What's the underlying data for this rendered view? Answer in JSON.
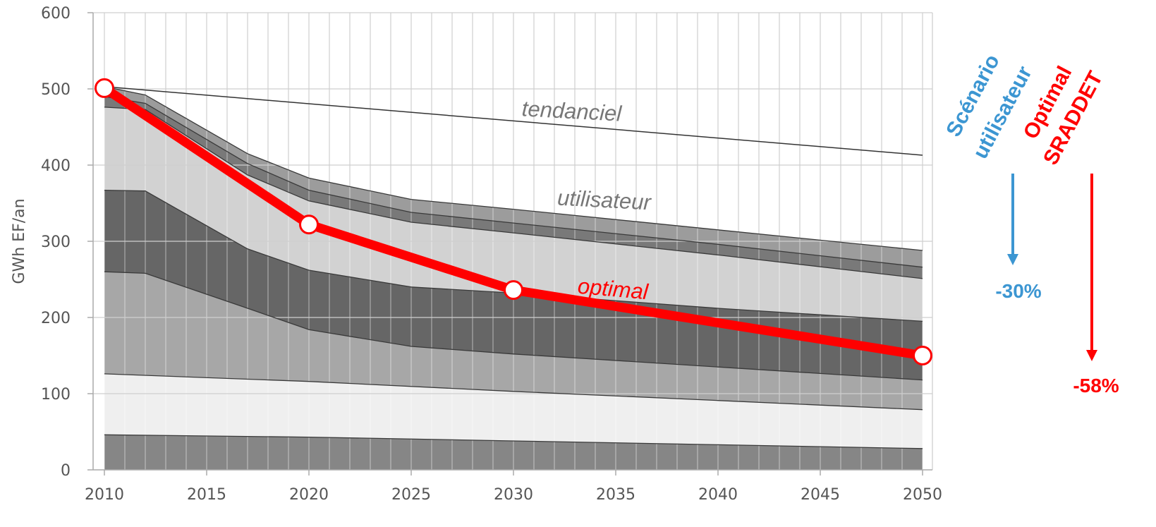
{
  "chart_data": {
    "type": "area",
    "xlabel": "",
    "ylabel": "GWh EF/an",
    "xlim": [
      2010,
      2050
    ],
    "ylim": [
      0,
      600
    ],
    "x_ticks": [
      "2010",
      "2015",
      "2020",
      "2025",
      "2030",
      "2035",
      "2040",
      "2045",
      "2050"
    ],
    "y_ticks": [
      "0",
      "100",
      "200",
      "300",
      "400",
      "500",
      "600"
    ],
    "grid": true,
    "stacked_bands_cumulative": [
      {
        "fill": "#868686",
        "x": [
          2010,
          2020,
          2030,
          2040,
          2050
        ],
        "top": [
          46,
          43,
          38,
          33,
          28
        ]
      },
      {
        "fill": "#efefef",
        "x": [
          2010,
          2020,
          2030,
          2040,
          2050
        ],
        "top": [
          126,
          116,
          103,
          91,
          79
        ]
      },
      {
        "fill": "#a7a7a7",
        "x": [
          2010,
          2012,
          2017,
          2020,
          2025,
          2030,
          2040,
          2050
        ],
        "top": [
          260,
          258,
          212,
          184,
          162,
          152,
          135,
          118
        ]
      },
      {
        "fill": "#666666",
        "x": [
          2010,
          2012,
          2017,
          2020,
          2025,
          2030,
          2040,
          2050
        ],
        "top": [
          367,
          366,
          290,
          262,
          240,
          232,
          212,
          195
        ]
      },
      {
        "fill": "#d2d2d2",
        "x": [
          2010,
          2012,
          2017,
          2020,
          2025,
          2030,
          2040,
          2050
        ],
        "top": [
          476,
          473,
          387,
          353,
          325,
          311,
          282,
          251
        ]
      },
      {
        "fill": "#797979",
        "x": [
          2010,
          2012,
          2017,
          2020,
          2025,
          2030,
          2040,
          2050
        ],
        "top": [
          490,
          481,
          402,
          367,
          338,
          324,
          296,
          266
        ]
      },
      {
        "fill": "#9c9c9c",
        "x": [
          2010,
          2012,
          2017,
          2020,
          2025,
          2030,
          2040,
          2050
        ],
        "top": [
          503,
          492,
          415,
          383,
          355,
          342,
          315,
          288
        ]
      }
    ],
    "series": [
      {
        "name": "tendanciel",
        "color": "#333333",
        "x": [
          2010,
          2050
        ],
        "values": [
          503,
          413
        ]
      },
      {
        "name": "optimal",
        "color": "#ff0000",
        "x": [
          2010,
          2020,
          2030,
          2050
        ],
        "values": [
          501,
          322,
          236,
          150
        ],
        "markers": true
      }
    ],
    "annotations": {
      "tendanciel": "tendanciel",
      "utilisateur": "utilisateur",
      "optimal": "optimal"
    },
    "side_labels": {
      "scenario_line1": "Scénario",
      "scenario_line2": "utilisateur",
      "scenario_pct": "-30%",
      "scenario_color": "#3c96d2",
      "optimal_line1": "Optimal",
      "optimal_line2": "SRADDET",
      "optimal_pct": "-58%",
      "optimal_color": "#ff0000"
    }
  }
}
